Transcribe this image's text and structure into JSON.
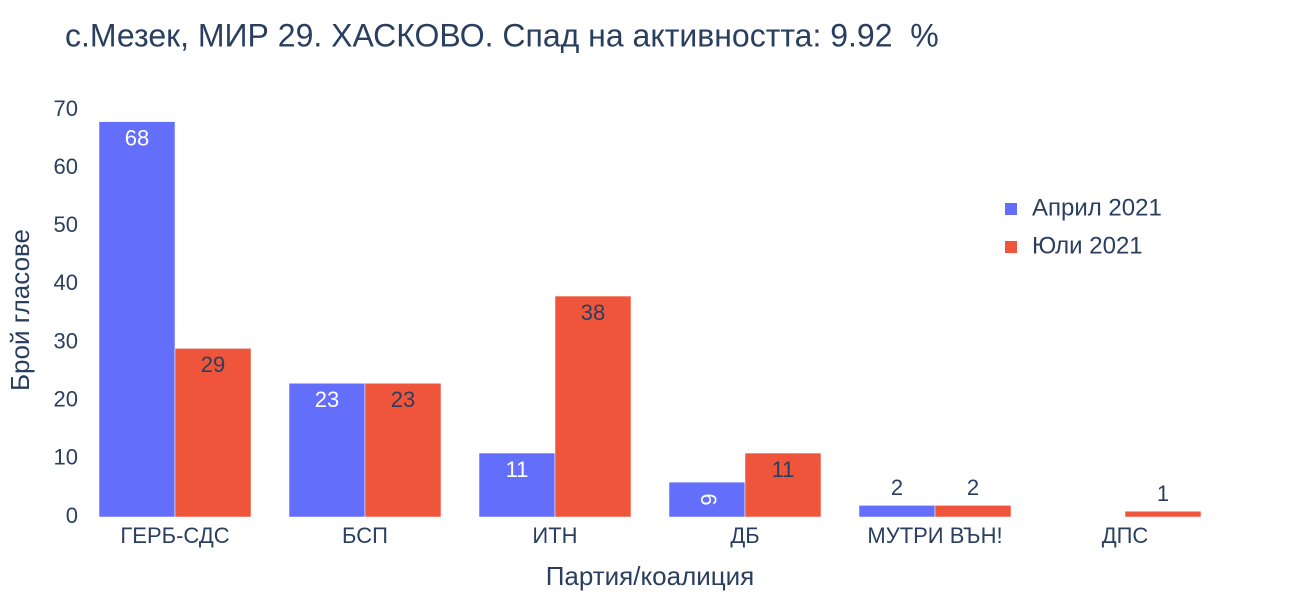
{
  "chart_data": {
    "type": "bar",
    "title": "с.Мезек, МИР 29. ХАСКОВО. Спад на активността: 9.92  %",
    "x_label": "Партия/коалиция",
    "y_label": "Брой гласове",
    "categories": [
      "ГЕРБ-СДС",
      "БСП",
      "ИТН",
      "ДБ",
      "МУТРИ ВЪН!",
      "ДПС"
    ],
    "series": [
      {
        "name": "Април 2021",
        "color": "#636efa",
        "values": [
          68,
          23,
          11,
          6,
          2,
          0
        ]
      },
      {
        "name": "Юли 2021",
        "color": "#ef553b",
        "values": [
          29,
          23,
          38,
          11,
          2,
          1
        ]
      }
    ],
    "ylim": [
      0,
      70
    ],
    "yticks": [
      0,
      10,
      20,
      30,
      40,
      50,
      60,
      70
    ],
    "grid": false,
    "legend": "upper right"
  }
}
